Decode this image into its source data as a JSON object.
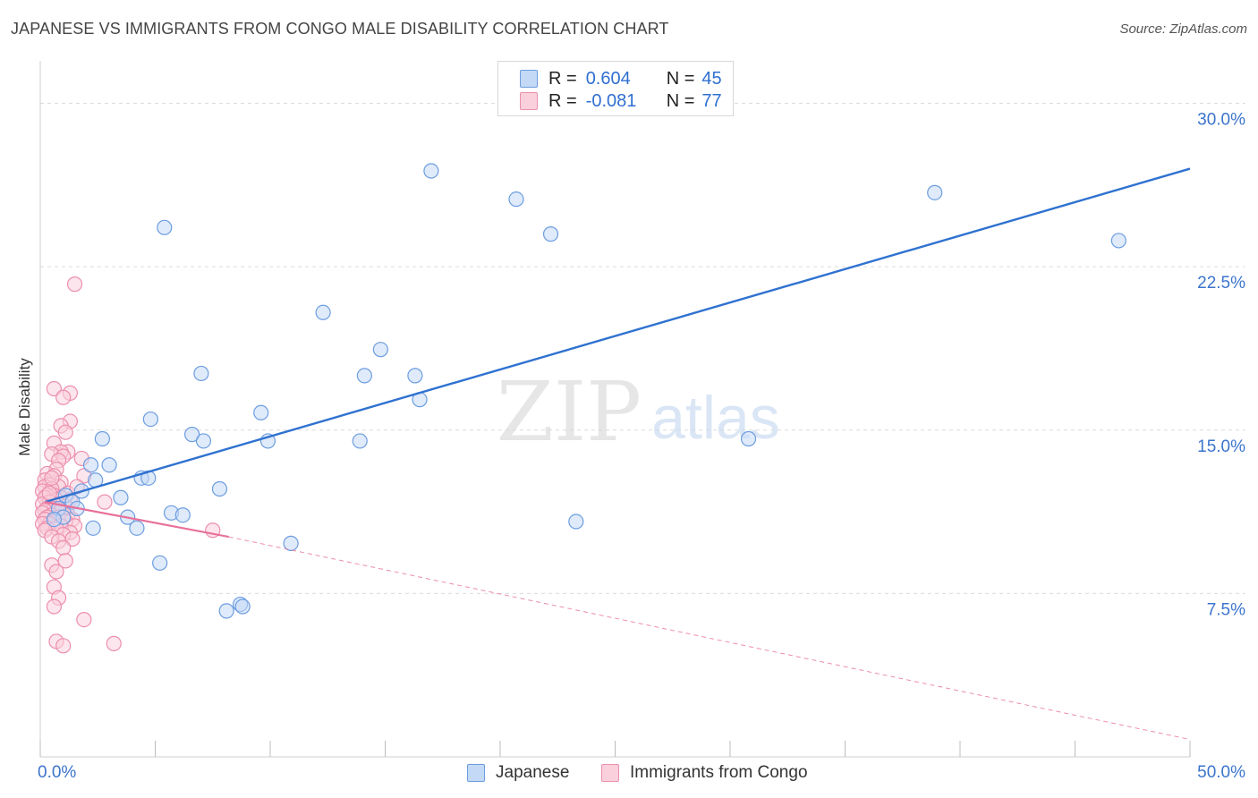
{
  "header": {
    "title": "JAPANESE VS IMMIGRANTS FROM CONGO MALE DISABILITY CORRELATION CHART",
    "source": "Source: ZipAtlas.com"
  },
  "stats": {
    "japanese": {
      "r_label": "R =",
      "r_value": "0.604",
      "n_label": "N =",
      "n_value": "45"
    },
    "congo": {
      "r_label": "R =",
      "r_value": "-0.081",
      "n_label": "N =",
      "n_value": "77"
    }
  },
  "legend": {
    "japanese": "Japanese",
    "congo": "Immigrants from Congo"
  },
  "watermark": {
    "zip": "ZIP",
    "atlas": "atlas"
  },
  "colors": {
    "japanese_fill": "#c4d9f5",
    "japanese_stroke": "#6c9de0",
    "japanese_line": "#2f72d0",
    "congo_fill": "#f9d0dc",
    "congo_stroke": "#ec8fad",
    "congo_line": "#e8709a",
    "tick_label": "#3b74cc",
    "grid": "#dcdcdc"
  },
  "chart_data": {
    "type": "scatter",
    "title": "JAPANESE VS IMMIGRANTS FROM CONGO MALE DISABILITY CORRELATION CHART",
    "xlabel": "",
    "ylabel": "Male Disability",
    "xlim": [
      0,
      50
    ],
    "ylim": [
      0,
      31.5
    ],
    "x_tick_labels": [
      {
        "value": 0,
        "label": "0.0%"
      },
      {
        "value": 50,
        "label": "50.0%"
      }
    ],
    "y_tick_labels": [
      {
        "value": 7.5,
        "label": "7.5%"
      },
      {
        "value": 15,
        "label": "15.0%"
      },
      {
        "value": 22.5,
        "label": "22.5%"
      },
      {
        "value": 30,
        "label": "30.0%"
      }
    ],
    "grid": true,
    "legend_position": "bottom-center",
    "series": [
      {
        "name": "Japanese",
        "r": 0.604,
        "n": 45,
        "trend": {
          "x": [
            0.2,
            50
          ],
          "y": [
            11.7,
            27.0
          ],
          "dashed_extension": false
        },
        "points": [
          [
            17.0,
            26.9
          ],
          [
            20.7,
            25.6
          ],
          [
            22.2,
            24.0
          ],
          [
            5.4,
            24.3
          ],
          [
            38.9,
            25.9
          ],
          [
            46.9,
            23.7
          ],
          [
            12.3,
            20.4
          ],
          [
            14.8,
            18.7
          ],
          [
            7.0,
            17.6
          ],
          [
            14.1,
            17.5
          ],
          [
            16.3,
            17.5
          ],
          [
            16.5,
            16.4
          ],
          [
            9.6,
            15.8
          ],
          [
            4.8,
            15.5
          ],
          [
            2.7,
            14.6
          ],
          [
            6.6,
            14.8
          ],
          [
            7.1,
            14.5
          ],
          [
            9.9,
            14.5
          ],
          [
            13.9,
            14.5
          ],
          [
            30.8,
            14.6
          ],
          [
            2.2,
            13.4
          ],
          [
            3.0,
            13.4
          ],
          [
            2.4,
            12.7
          ],
          [
            4.4,
            12.8
          ],
          [
            4.7,
            12.8
          ],
          [
            7.8,
            12.3
          ],
          [
            1.8,
            12.2
          ],
          [
            1.1,
            12.0
          ],
          [
            3.5,
            11.9
          ],
          [
            1.4,
            11.7
          ],
          [
            1.6,
            11.4
          ],
          [
            5.7,
            11.2
          ],
          [
            6.2,
            11.1
          ],
          [
            3.8,
            11.0
          ],
          [
            0.8,
            11.4
          ],
          [
            1.0,
            11.0
          ],
          [
            0.6,
            10.9
          ],
          [
            2.3,
            10.5
          ],
          [
            4.2,
            10.5
          ],
          [
            23.3,
            10.8
          ],
          [
            10.9,
            9.8
          ],
          [
            5.2,
            8.9
          ],
          [
            8.7,
            7.0
          ],
          [
            8.8,
            6.9
          ],
          [
            8.1,
            6.7
          ]
        ]
      },
      {
        "name": "Immigrants from Congo",
        "r": -0.081,
        "n": 77,
        "trend": {
          "x": [
            0.2,
            8.2
          ],
          "y": [
            11.7,
            10.1
          ],
          "dashed_extension": true,
          "dashed_to": [
            50,
            0.8
          ]
        },
        "points": [
          [
            1.5,
            21.7
          ],
          [
            0.6,
            16.9
          ],
          [
            1.3,
            16.7
          ],
          [
            1.0,
            16.5
          ],
          [
            1.3,
            15.4
          ],
          [
            0.9,
            15.2
          ],
          [
            1.1,
            14.9
          ],
          [
            0.6,
            14.4
          ],
          [
            1.2,
            14.0
          ],
          [
            0.9,
            14.0
          ],
          [
            0.5,
            13.9
          ],
          [
            1.0,
            13.8
          ],
          [
            1.8,
            13.7
          ],
          [
            0.8,
            13.6
          ],
          [
            0.7,
            13.2
          ],
          [
            0.3,
            13.0
          ],
          [
            1.9,
            12.9
          ],
          [
            0.6,
            12.9
          ],
          [
            0.2,
            12.7
          ],
          [
            0.9,
            12.6
          ],
          [
            0.4,
            12.5
          ],
          [
            0.2,
            12.4
          ],
          [
            0.8,
            12.4
          ],
          [
            0.5,
            12.3
          ],
          [
            0.1,
            12.2
          ],
          [
            1.2,
            12.1
          ],
          [
            0.6,
            12.0
          ],
          [
            0.3,
            12.0
          ],
          [
            0.9,
            11.9
          ],
          [
            0.2,
            11.9
          ],
          [
            0.7,
            11.8
          ],
          [
            1.3,
            11.8
          ],
          [
            2.8,
            11.7
          ],
          [
            0.4,
            11.7
          ],
          [
            0.1,
            11.6
          ],
          [
            0.8,
            11.6
          ],
          [
            1.1,
            11.5
          ],
          [
            0.3,
            11.4
          ],
          [
            0.6,
            11.4
          ],
          [
            0.2,
            11.3
          ],
          [
            0.9,
            11.3
          ],
          [
            0.1,
            11.2
          ],
          [
            0.5,
            11.1
          ],
          [
            1.2,
            11.1
          ],
          [
            0.3,
            11.0
          ],
          [
            0.8,
            11.0
          ],
          [
            1.4,
            10.9
          ],
          [
            0.2,
            10.9
          ],
          [
            0.6,
            10.8
          ],
          [
            1.1,
            10.8
          ],
          [
            0.4,
            10.7
          ],
          [
            0.1,
            10.7
          ],
          [
            0.9,
            10.6
          ],
          [
            1.5,
            10.6
          ],
          [
            0.3,
            10.5
          ],
          [
            0.7,
            10.5
          ],
          [
            0.2,
            10.4
          ],
          [
            1.3,
            10.3
          ],
          [
            7.5,
            10.4
          ],
          [
            1.0,
            10.2
          ],
          [
            0.5,
            10.1
          ],
          [
            1.4,
            10.0
          ],
          [
            0.8,
            9.9
          ],
          [
            1.0,
            9.6
          ],
          [
            1.1,
            9.0
          ],
          [
            0.5,
            8.8
          ],
          [
            0.7,
            8.5
          ],
          [
            0.6,
            7.8
          ],
          [
            0.8,
            7.3
          ],
          [
            0.6,
            6.9
          ],
          [
            1.9,
            6.3
          ],
          [
            0.7,
            5.3
          ],
          [
            1.0,
            5.1
          ],
          [
            3.2,
            5.2
          ],
          [
            0.5,
            12.8
          ],
          [
            1.6,
            12.4
          ],
          [
            0.4,
            12.1
          ]
        ]
      }
    ]
  },
  "axes": {
    "ylabel": "Male Disability"
  }
}
